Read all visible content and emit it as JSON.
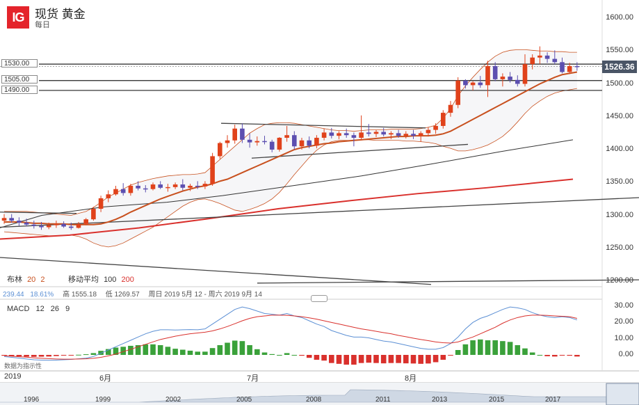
{
  "header": {
    "logo": "IG",
    "title": "现货 黄金",
    "period": "每日"
  },
  "levels": [
    "1530.00",
    "1505.00",
    "1490.00"
  ],
  "current_price": "1526.36",
  "indicators": {
    "bb_label": "布林",
    "bb_p1": "20",
    "bb_p2": "2",
    "ma_label": "移动平均",
    "ma_p1": "100",
    "ma_p2": "200"
  },
  "info": {
    "v1": "239.44",
    "v2": "18.61%",
    "high": "高 1555.18",
    "low": "低 1269.57",
    "range": "周日 2019 5月 12 - 周六 2019 9月 14"
  },
  "macd": {
    "label": "MACD",
    "p1": "12",
    "p2": "26",
    "p3": "9"
  },
  "note": "数据为指示性",
  "colors": {
    "up": "#e0421b",
    "down": "#5c4fb0",
    "bb": "#c8501e",
    "ma20": "#c8501e",
    "ma100": "#333333",
    "ma200": "#d9302c",
    "macd_line": "#5b8fd4",
    "signal_line": "#d9302c",
    "hist_pos": "#3aa13a",
    "hist_neg": "#d9302c"
  },
  "chart_data": {
    "type": "candlestick",
    "y_ticks": [
      "1600.00",
      "1550.00",
      "1500.00",
      "1450.00",
      "1400.00",
      "1350.00",
      "1300.00",
      "1250.00",
      "1200.00"
    ],
    "ylim": [
      1200,
      1600
    ],
    "x_labels": [
      "2019",
      "6月",
      "7月",
      "8月"
    ],
    "navigator_years": [
      "1996",
      "1999",
      "2002",
      "2005",
      "2008",
      "2011",
      "2013",
      "2015",
      "2017"
    ],
    "macd_ticks": [
      "30.00",
      "20.00",
      "10.00",
      "0.00"
    ],
    "macd_ylim": [
      -5,
      32
    ],
    "ohlc": [
      [
        1292,
        1302,
        1287,
        1296
      ],
      [
        1296,
        1302,
        1289,
        1292
      ],
      [
        1292,
        1297,
        1284,
        1289
      ],
      [
        1289,
        1295,
        1283,
        1286
      ],
      [
        1286,
        1292,
        1280,
        1284
      ],
      [
        1284,
        1290,
        1278,
        1282
      ],
      [
        1282,
        1289,
        1279,
        1285
      ],
      [
        1285,
        1292,
        1281,
        1287
      ],
      [
        1287,
        1291,
        1281,
        1283
      ],
      [
        1283,
        1289,
        1278,
        1281
      ],
      [
        1281,
        1290,
        1280,
        1287
      ],
      [
        1287,
        1296,
        1285,
        1294
      ],
      [
        1294,
        1313,
        1292,
        1310
      ],
      [
        1310,
        1330,
        1305,
        1326
      ],
      [
        1326,
        1338,
        1320,
        1332
      ],
      [
        1332,
        1345,
        1330,
        1340
      ],
      [
        1340,
        1349,
        1330,
        1334
      ],
      [
        1334,
        1348,
        1330,
        1345
      ],
      [
        1345,
        1352,
        1338,
        1341
      ],
      [
        1341,
        1346,
        1335,
        1340
      ],
      [
        1340,
        1350,
        1338,
        1347
      ],
      [
        1347,
        1352,
        1340,
        1342
      ],
      [
        1342,
        1348,
        1336,
        1343
      ],
      [
        1343,
        1350,
        1340,
        1347
      ],
      [
        1347,
        1355,
        1338,
        1342
      ],
      [
        1342,
        1348,
        1337,
        1345
      ],
      [
        1345,
        1352,
        1340,
        1344
      ],
      [
        1344,
        1352,
        1340,
        1348
      ],
      [
        1348,
        1395,
        1345,
        1390
      ],
      [
        1390,
        1412,
        1386,
        1410
      ],
      [
        1410,
        1422,
        1403,
        1414
      ],
      [
        1414,
        1438,
        1409,
        1432
      ],
      [
        1432,
        1440,
        1410,
        1415
      ],
      [
        1415,
        1425,
        1403,
        1411
      ],
      [
        1411,
        1420,
        1406,
        1413
      ],
      [
        1413,
        1421,
        1408,
        1412
      ],
      [
        1412,
        1415,
        1396,
        1400
      ],
      [
        1400,
        1419,
        1397,
        1418
      ],
      [
        1418,
        1436,
        1412,
        1422
      ],
      [
        1422,
        1428,
        1400,
        1405
      ],
      [
        1405,
        1418,
        1400,
        1414
      ],
      [
        1414,
        1420,
        1402,
        1406
      ],
      [
        1406,
        1422,
        1402,
        1418
      ],
      [
        1418,
        1432,
        1414,
        1426
      ],
      [
        1426,
        1433,
        1417,
        1421
      ],
      [
        1421,
        1428,
        1416,
        1425
      ],
      [
        1425,
        1432,
        1418,
        1422
      ],
      [
        1422,
        1426,
        1405,
        1418
      ],
      [
        1418,
        1452,
        1414,
        1426
      ],
      [
        1426,
        1439,
        1420,
        1424
      ],
      [
        1424,
        1430,
        1419,
        1427
      ],
      [
        1427,
        1433,
        1420,
        1423
      ],
      [
        1423,
        1428,
        1416,
        1425
      ],
      [
        1425,
        1430,
        1418,
        1421
      ],
      [
        1421,
        1428,
        1417,
        1424
      ],
      [
        1424,
        1430,
        1416,
        1421
      ],
      [
        1421,
        1428,
        1412,
        1425
      ],
      [
        1425,
        1434,
        1420,
        1430
      ],
      [
        1430,
        1440,
        1424,
        1436
      ],
      [
        1436,
        1460,
        1432,
        1456
      ],
      [
        1456,
        1474,
        1450,
        1468
      ],
      [
        1468,
        1510,
        1463,
        1505
      ],
      [
        1505,
        1507,
        1493,
        1498
      ],
      [
        1498,
        1504,
        1490,
        1502
      ],
      [
        1502,
        1512,
        1494,
        1498
      ],
      [
        1498,
        1535,
        1480,
        1527
      ],
      [
        1527,
        1533,
        1504,
        1507
      ],
      [
        1507,
        1516,
        1496,
        1511
      ],
      [
        1511,
        1518,
        1502,
        1506
      ],
      [
        1506,
        1513,
        1496,
        1500
      ],
      [
        1500,
        1545,
        1496,
        1530
      ],
      [
        1530,
        1545,
        1522,
        1540
      ],
      [
        1540,
        1557,
        1530,
        1543
      ],
      [
        1543,
        1548,
        1532,
        1538
      ],
      [
        1538,
        1551,
        1530,
        1533
      ],
      [
        1533,
        1540,
        1516,
        1518
      ],
      [
        1518,
        1532,
        1515,
        1527
      ],
      [
        1527,
        1533,
        1520,
        1526
      ]
    ],
    "bb_upper": [
      1306,
      1306,
      1306,
      1306,
      1305,
      1304,
      1303,
      1302,
      1301,
      1300,
      1303,
      1306,
      1312,
      1320,
      1328,
      1334,
      1340,
      1346,
      1350,
      1353,
      1356,
      1358,
      1360,
      1361,
      1362,
      1362,
      1363,
      1365,
      1375,
      1385,
      1395,
      1405,
      1415,
      1425,
      1432,
      1438,
      1440,
      1441,
      1441,
      1440,
      1438,
      1436,
      1434,
      1432,
      1430,
      1429,
      1429,
      1428,
      1429,
      1430,
      1430,
      1430,
      1431,
      1431,
      1431,
      1431,
      1432,
      1434,
      1437,
      1448,
      1462,
      1482,
      1497,
      1510,
      1522,
      1533,
      1542,
      1548,
      1551,
      1552,
      1552,
      1551,
      1550,
      1550,
      1549,
      1549,
      1548,
      1548
    ],
    "bb_lower": [
      1275,
      1274,
      1273,
      1272,
      1271,
      1270,
      1269,
      1269,
      1270,
      1270,
      1268,
      1264,
      1258,
      1254,
      1252,
      1254,
      1258,
      1264,
      1270,
      1276,
      1282,
      1290,
      1298,
      1306,
      1314,
      1320,
      1324,
      1325,
      1322,
      1318,
      1313,
      1308,
      1306,
      1309,
      1313,
      1318,
      1325,
      1335,
      1348,
      1362,
      1375,
      1388,
      1399,
      1407,
      1412,
      1414,
      1414,
      1414,
      1415,
      1415,
      1414,
      1414,
      1414,
      1414,
      1413,
      1413,
      1412,
      1411,
      1409,
      1405,
      1402,
      1398,
      1398,
      1400,
      1403,
      1407,
      1413,
      1420,
      1430,
      1442,
      1455,
      1466,
      1474,
      1481,
      1486,
      1489,
      1491,
      1493
    ],
    "ma20": [
      1290,
      1290,
      1290,
      1289,
      1288,
      1288,
      1287,
      1287,
      1287,
      1286,
      1286,
      1286,
      1286,
      1287,
      1290,
      1294,
      1299,
      1305,
      1310,
      1315,
      1320,
      1325,
      1329,
      1333,
      1337,
      1340,
      1343,
      1345,
      1348,
      1352,
      1355,
      1360,
      1365,
      1370,
      1375,
      1380,
      1385,
      1390,
      1395,
      1400,
      1403,
      1405,
      1407,
      1409,
      1410,
      1412,
      1413,
      1414,
      1415,
      1416,
      1417,
      1418,
      1419,
      1420,
      1420,
      1421,
      1421,
      1421,
      1422,
      1424,
      1428,
      1434,
      1440,
      1446,
      1452,
      1458,
      1464,
      1470,
      1476,
      1482,
      1488,
      1494,
      1500,
      1505,
      1510,
      1514,
      1516,
      1518
    ],
    "ma100": [
      [
        0,
        1281
      ],
      [
        60,
        1300
      ],
      [
        150,
        1313
      ],
      [
        240,
        1320
      ],
      [
        320,
        1330
      ],
      [
        420,
        1345
      ],
      [
        520,
        1360
      ],
      [
        620,
        1378
      ],
      [
        720,
        1397
      ],
      [
        824,
        1415
      ]
    ],
    "ma200": [
      [
        0,
        1264
      ],
      [
        100,
        1270
      ],
      [
        200,
        1281
      ],
      [
        300,
        1295
      ],
      [
        400,
        1310
      ],
      [
        500,
        1322
      ],
      [
        600,
        1333
      ],
      [
        700,
        1342
      ],
      [
        824,
        1355
      ]
    ],
    "trendlines": [
      [
        [
          0,
          1305
        ],
        [
          110,
          1303
        ]
      ],
      [
        [
          0,
          1282
        ],
        [
          919,
          1327
        ]
      ],
      [
        [
          318,
          1440
        ],
        [
          612,
          1433
        ]
      ],
      [
        [
          362,
          1387
        ],
        [
          673,
          1408
        ]
      ],
      [
        [
          0,
          1236
        ],
        [
          620,
          1195
        ]
      ],
      [
        [
          370,
          1197
        ],
        [
          919,
          1202
        ]
      ]
    ],
    "macd": [
      -1,
      -1.5,
      -2,
      -2.5,
      -3,
      -3.2,
      -3.3,
      -3.2,
      -3,
      -2.8,
      -2.4,
      -2,
      -1,
      1,
      3,
      5,
      7,
      9,
      11,
      13,
      14.5,
      15.5,
      15.5,
      15.3,
      15.5,
      15.6,
      15.5,
      16,
      19,
      22,
      25,
      28,
      29.5,
      28.5,
      27,
      25.5,
      25,
      24.5,
      25.5,
      24,
      23,
      21,
      19,
      17.5,
      15,
      13.5,
      12,
      11,
      11,
      10.5,
      9.5,
      8.5,
      8,
      7,
      6,
      5,
      4,
      3.5,
      3.5,
      4.5,
      7,
      11,
      16,
      20,
      22.5,
      24,
      26,
      28,
      29.5,
      29,
      28,
      26,
      24.5,
      23.5,
      23,
      23.5,
      23,
      21.5
    ],
    "signal": [
      -0.5,
      -0.8,
      -1.1,
      -1.4,
      -1.8,
      -2.1,
      -2.3,
      -2.5,
      -2.6,
      -2.6,
      -2.5,
      -2.4,
      -2.1,
      -1.5,
      -0.6,
      0.5,
      2,
      3.4,
      5,
      6.5,
      8,
      9.5,
      10.5,
      11.5,
      12.3,
      13,
      13.5,
      14,
      14.8,
      16,
      17.5,
      19.2,
      21,
      22.5,
      23.5,
      24,
      24.5,
      24.5,
      24.4,
      24,
      23.5,
      22.8,
      22,
      21,
      20,
      19,
      18,
      17,
      16,
      15.3,
      14.5,
      13.7,
      13,
      12,
      11.2,
      10.3,
      9.5,
      8.8,
      8,
      7.5,
      7.3,
      8,
      9.5,
      11,
      13,
      15,
      17,
      19.5,
      21.5,
      23,
      24,
      24.5,
      24.5,
      24.3,
      24,
      23.8,
      23.5,
      22.5
    ]
  }
}
